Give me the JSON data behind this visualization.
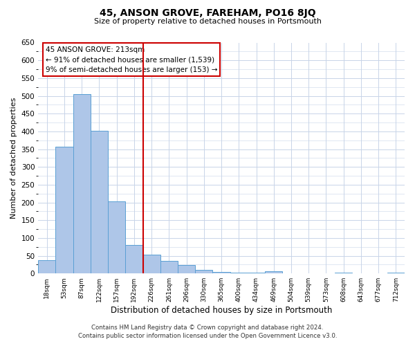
{
  "title": "45, ANSON GROVE, FAREHAM, PO16 8JQ",
  "subtitle": "Size of property relative to detached houses in Portsmouth",
  "xlabel": "Distribution of detached houses by size in Portsmouth",
  "ylabel": "Number of detached properties",
  "bin_labels": [
    "18sqm",
    "53sqm",
    "87sqm",
    "122sqm",
    "157sqm",
    "192sqm",
    "226sqm",
    "261sqm",
    "296sqm",
    "330sqm",
    "365sqm",
    "400sqm",
    "434sqm",
    "469sqm",
    "504sqm",
    "539sqm",
    "573sqm",
    "608sqm",
    "643sqm",
    "677sqm",
    "712sqm"
  ],
  "bar_heights": [
    38,
    357,
    505,
    401,
    203,
    80,
    53,
    35,
    23,
    10,
    5,
    3,
    2,
    7,
    0,
    0,
    0,
    3,
    0,
    0,
    3
  ],
  "bar_color": "#aec6e8",
  "bar_edge_color": "#5a9fd4",
  "vline_x_index": 6,
  "vline_color": "#cc0000",
  "annotation_title": "45 ANSON GROVE: 213sqm",
  "annotation_line1": "← 91% of detached houses are smaller (1,539)",
  "annotation_line2": "9% of semi-detached houses are larger (153) →",
  "annotation_box_color": "#cc0000",
  "ylim": [
    0,
    650
  ],
  "yticks": [
    0,
    50,
    100,
    150,
    200,
    250,
    300,
    350,
    400,
    450,
    500,
    550,
    600,
    650
  ],
  "footnote1": "Contains HM Land Registry data © Crown copyright and database right 2024.",
  "footnote2": "Contains public sector information licensed under the Open Government Licence v3.0.",
  "bg_color": "#ffffff",
  "grid_color": "#c8d4e8"
}
